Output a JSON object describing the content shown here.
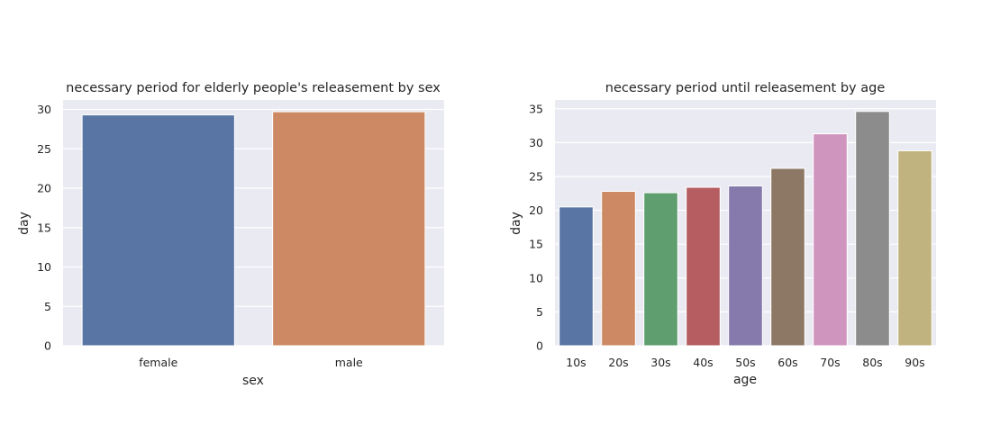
{
  "chart_data": [
    {
      "type": "bar",
      "title": "necessary period for elderly people's releasement by sex",
      "xlabel": "sex",
      "ylabel": "day",
      "categories": [
        "female",
        "male"
      ],
      "values": [
        29.3,
        29.7
      ],
      "colors": [
        "#5875a4",
        "#cc8963"
      ],
      "ylim": [
        0,
        31.2
      ],
      "yticks": [
        0,
        5,
        10,
        15,
        20,
        25,
        30
      ],
      "grid": true,
      "background": "#eaeaf2"
    },
    {
      "type": "bar",
      "title": "necessary period until releasement by age",
      "xlabel": "age",
      "ylabel": "day",
      "categories": [
        "10s",
        "20s",
        "30s",
        "40s",
        "50s",
        "60s",
        "70s",
        "80s",
        "90s"
      ],
      "values": [
        20.5,
        22.8,
        22.6,
        23.4,
        23.6,
        26.2,
        31.3,
        34.6,
        28.8
      ],
      "colors": [
        "#5875a4",
        "#cc8963",
        "#5f9e6e",
        "#b55d60",
        "#857aab",
        "#8d7866",
        "#d095bf",
        "#8c8c8c",
        "#c1b37f"
      ],
      "ylim": [
        0,
        36.3
      ],
      "yticks": [
        0,
        5,
        10,
        15,
        20,
        25,
        30,
        35
      ],
      "grid": true,
      "background": "#eaeaf2"
    }
  ]
}
